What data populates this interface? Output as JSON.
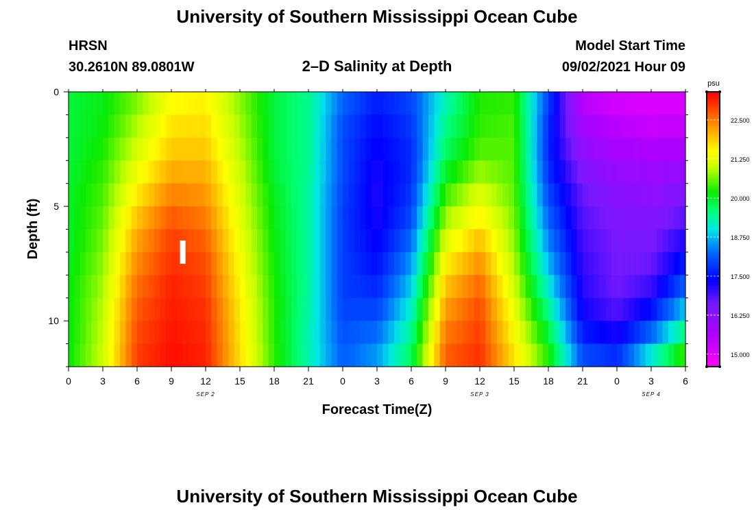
{
  "header": {
    "title": "University of Southern Mississippi Ocean Cube",
    "station": "HRSN",
    "coords": "30.2610N  89.0801W",
    "subtitle": "2–D Salinity at Depth",
    "model_label": "Model Start Time",
    "model_time": "09/02/2021 Hour 09"
  },
  "footer": {
    "title": "University of Southern Mississippi Ocean Cube"
  },
  "chart_data": {
    "type": "heatmap",
    "title": "2–D Salinity at Depth",
    "xlabel": "Forecast Time(Z)",
    "ylabel": "Depth (ft)",
    "x_range_hours": [
      0,
      54
    ],
    "x_tick_labels": [
      "0",
      "3",
      "6",
      "9",
      "12",
      "15",
      "18",
      "21",
      "0",
      "3",
      "6",
      "9",
      "12",
      "15",
      "18",
      "21",
      "0",
      "3",
      "6"
    ],
    "date_labels": [
      {
        "label": "SEP 2",
        "at_tick": "12"
      },
      {
        "label": "SEP 3",
        "at_tick": "12"
      },
      {
        "label": "SEP 4",
        "at_tick": "3"
      }
    ],
    "ylim": [
      0,
      12
    ],
    "y_tick_labels": [
      "0",
      "5",
      "10"
    ],
    "colorbar": {
      "unit": "psu",
      "range": [
        14.6,
        23.4
      ],
      "tick_labels": [
        "22.500",
        "21.250",
        "20.000",
        "18.750",
        "17.500",
        "16.250",
        "15.000"
      ],
      "ticks": [
        22.5,
        21.25,
        20.0,
        18.75,
        17.5,
        16.25,
        15.0
      ]
    },
    "current_time_marker": {
      "hour": 10,
      "depth_ft": 7.0
    },
    "depth_levels_ft": [
      0,
      1,
      2,
      3,
      4,
      5,
      6,
      7,
      8,
      9,
      10,
      11,
      12
    ],
    "salinity_psu": [
      [
        19.9,
        20.1,
        20.6,
        21.4,
        21.5,
        20.7,
        19.9,
        19.5,
        18.3,
        17.7,
        18.0,
        19.2,
        20.3,
        20.3,
        18.0,
        15.4,
        15.0,
        15.0,
        15.0
      ],
      [
        19.9,
        20.1,
        20.8,
        21.6,
        21.7,
        20.8,
        19.9,
        19.5,
        18.1,
        17.5,
        17.9,
        19.4,
        20.3,
        20.4,
        17.8,
        15.6,
        15.3,
        15.2,
        15.2
      ],
      [
        19.9,
        20.2,
        21.0,
        21.8,
        21.8,
        20.9,
        19.9,
        19.5,
        18.0,
        17.4,
        17.8,
        19.6,
        20.4,
        20.5,
        17.7,
        16.0,
        15.6,
        15.4,
        15.5
      ],
      [
        19.9,
        20.3,
        21.2,
        22.0,
        22.0,
        21.0,
        19.9,
        19.5,
        18.0,
        17.3,
        17.7,
        19.8,
        20.6,
        20.5,
        17.7,
        16.3,
        15.9,
        15.8,
        15.9
      ],
      [
        20.0,
        20.4,
        21.5,
        22.3,
        22.2,
        21.1,
        20.0,
        19.4,
        18.0,
        17.2,
        17.8,
        20.2,
        21.0,
        20.5,
        17.9,
        16.6,
        16.2,
        16.1,
        16.3
      ],
      [
        20.0,
        20.5,
        21.8,
        22.6,
        22.4,
        21.2,
        20.1,
        19.4,
        17.9,
        17.2,
        17.9,
        20.6,
        21.4,
        20.6,
        18.1,
        16.8,
        16.4,
        16.3,
        16.6
      ],
      [
        20.0,
        20.6,
        22.1,
        22.9,
        22.6,
        21.3,
        20.1,
        19.4,
        17.9,
        17.3,
        18.1,
        21.0,
        21.8,
        20.7,
        18.3,
        16.9,
        16.5,
        16.5,
        17.0
      ],
      [
        20.0,
        20.7,
        22.3,
        23.0,
        22.8,
        21.4,
        20.2,
        19.4,
        17.9,
        17.4,
        18.4,
        21.4,
        22.2,
        20.8,
        18.6,
        17.0,
        16.6,
        16.6,
        17.4
      ],
      [
        20.1,
        20.8,
        22.5,
        23.1,
        22.9,
        21.5,
        20.2,
        19.4,
        17.9,
        17.6,
        18.7,
        21.8,
        22.5,
        21.0,
        18.9,
        17.1,
        16.6,
        16.8,
        17.9
      ],
      [
        20.1,
        20.9,
        22.7,
        23.2,
        23.0,
        21.6,
        20.3,
        19.4,
        17.9,
        17.8,
        19.0,
        22.1,
        22.8,
        21.2,
        19.3,
        17.2,
        16.7,
        17.2,
        18.5
      ],
      [
        20.1,
        21.0,
        22.8,
        23.2,
        23.1,
        21.7,
        20.3,
        19.3,
        18.0,
        18.1,
        19.3,
        22.4,
        22.9,
        21.4,
        19.7,
        17.4,
        17.0,
        17.8,
        19.2
      ],
      [
        20.1,
        21.0,
        22.9,
        23.3,
        23.1,
        21.7,
        20.3,
        19.3,
        18.1,
        18.4,
        19.6,
        22.6,
        23.0,
        21.6,
        20.1,
        17.8,
        17.5,
        18.6,
        20.0
      ],
      [
        20.2,
        21.1,
        23.0,
        23.3,
        23.2,
        21.8,
        20.4,
        19.3,
        18.2,
        18.7,
        19.9,
        22.8,
        23.1,
        21.8,
        20.4,
        18.2,
        18.0,
        19.5,
        20.8
      ]
    ]
  }
}
